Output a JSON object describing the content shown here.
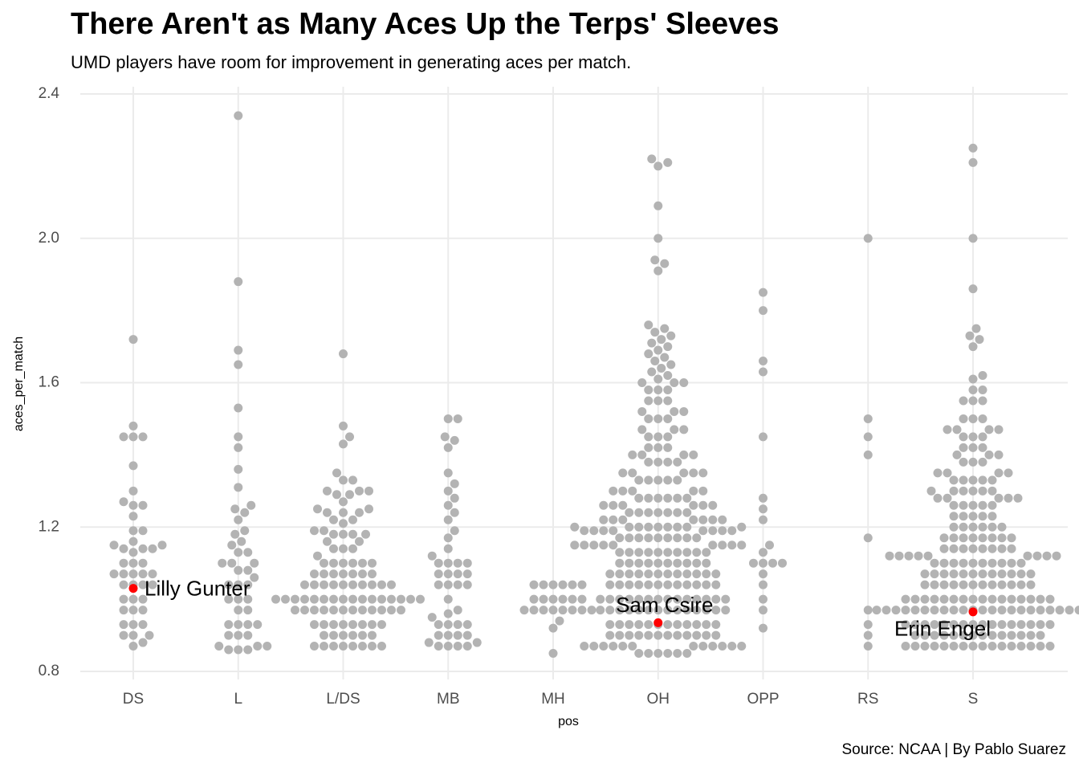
{
  "chart_data": {
    "type": "beeswarm",
    "title": "There Aren't as Many Aces Up the Terps' Sleeves",
    "subtitle": "UMD players have room for improvement in generating aces per match.",
    "caption": "Source: NCAA  |  By Pablo Suarez",
    "x_label": "pos",
    "y_label": "aces_per_match",
    "categories": [
      "DS",
      "L",
      "L/DS",
      "MB",
      "MH",
      "OH",
      "OPP",
      "RS",
      "S"
    ],
    "color": "#b3b3b3",
    "highlight_color": "#ff0000",
    "grid": true,
    "ylim": [
      0.8,
      2.4
    ],
    "yticks": [
      0.8,
      1.2,
      1.6,
      {
        "value": 2.0,
        "label": "2.0"
      },
      2.4
    ],
    "values": [
      [
        1.72,
        1.48,
        1.45,
        1.45,
        1.45,
        1.37,
        1.3,
        1.27,
        1.26,
        1.26,
        1.23,
        1.19,
        1.19,
        1.16,
        1.15,
        1.15,
        1.14,
        1.14,
        1.14,
        1.13,
        1.1,
        1.1,
        1.1,
        1.07,
        1.07,
        1.07,
        1.07,
        1.07,
        1.04,
        1.04,
        1.04,
        1.04,
        1.0,
        1.0,
        1.0,
        0.97,
        0.97,
        0.97,
        0.93,
        0.93,
        0.93,
        0.9,
        0.9,
        0.9,
        0.88,
        0.87
      ],
      [
        2.34,
        1.88,
        1.69,
        1.65,
        1.53,
        1.45,
        1.42,
        1.36,
        1.31,
        1.26,
        1.25,
        1.24,
        1.22,
        1.19,
        1.18,
        1.16,
        1.15,
        1.13,
        1.13,
        1.1,
        1.1,
        1.1,
        1.08,
        1.08,
        1.06,
        1.04,
        1.04,
        1.04,
        1.0,
        1.0,
        1.0,
        0.97,
        0.97,
        0.93,
        0.93,
        0.93,
        0.93,
        0.9,
        0.9,
        0.9,
        0.87,
        0.87,
        0.86,
        0.86,
        0.86,
        0.87
      ],
      [
        1.68,
        1.48,
        1.45,
        1.43,
        1.35,
        1.33,
        1.33,
        1.3,
        1.3,
        1.3,
        1.29,
        1.29,
        1.27,
        1.25,
        1.25,
        1.24,
        1.24,
        1.24,
        1.22,
        1.22,
        1.21,
        1.19,
        1.19,
        1.18,
        1.18,
        1.18,
        1.18,
        1.16,
        1.16,
        1.14,
        1.14,
        1.14,
        1.12,
        1.1,
        1.1,
        1.1,
        1.1,
        1.1,
        1.1,
        1.07,
        1.07,
        1.07,
        1.07,
        1.07,
        1.07,
        1.07,
        1.04,
        1.04,
        1.04,
        1.04,
        1.04,
        1.04,
        1.04,
        1.04,
        1.04,
        1.04,
        1.0,
        1.0,
        1.0,
        1.0,
        1.0,
        1.0,
        1.0,
        1.0,
        1.0,
        1.0,
        1.0,
        1.0,
        1.0,
        1.0,
        1.0,
        1.0,
        0.97,
        0.97,
        0.97,
        0.97,
        0.97,
        0.97,
        0.97,
        0.97,
        0.97,
        0.97,
        0.97,
        0.97,
        0.93,
        0.93,
        0.93,
        0.93,
        0.93,
        0.93,
        0.93,
        0.93,
        0.9,
        0.9,
        0.9,
        0.9,
        0.9,
        0.9,
        0.87,
        0.87,
        0.87,
        0.87,
        0.87,
        0.87,
        0.87,
        0.87
      ],
      [
        1.5,
        1.5,
        1.45,
        1.44,
        1.42,
        1.35,
        1.32,
        1.3,
        1.28,
        1.26,
        1.24,
        1.22,
        1.19,
        1.17,
        1.14,
        1.12,
        1.1,
        1.1,
        1.1,
        1.1,
        1.07,
        1.07,
        1.07,
        1.07,
        1.04,
        1.04,
        1.04,
        1.04,
        1.0,
        0.97,
        0.96,
        0.95,
        0.93,
        0.93,
        0.93,
        0.93,
        0.9,
        0.9,
        0.9,
        0.9,
        0.88,
        0.88,
        0.87,
        0.87,
        0.87,
        0.87
      ],
      [
        1.04,
        1.04,
        1.04,
        1.04,
        1.04,
        1.04,
        1.0,
        1.0,
        1.0,
        1.0,
        1.0,
        1.0,
        0.97,
        0.97,
        0.97,
        0.97,
        0.97,
        0.97,
        0.97,
        0.97,
        0.94,
        0.92,
        0.85
      ],
      [
        2.22,
        2.21,
        2.2,
        2.09,
        2.0,
        1.94,
        1.93,
        1.91,
        1.76,
        1.75,
        1.74,
        1.73,
        1.72,
        1.71,
        1.7,
        1.69,
        1.68,
        1.67,
        1.66,
        1.65,
        1.64,
        1.63,
        1.62,
        1.61,
        1.6,
        1.6,
        1.6,
        1.58,
        1.58,
        1.58,
        1.55,
        1.55,
        1.55,
        1.52,
        1.52,
        1.52,
        1.5,
        1.5,
        1.5,
        1.47,
        1.47,
        1.47,
        1.45,
        1.45,
        1.45,
        1.42,
        1.42,
        1.42,
        1.4,
        1.4,
        1.4,
        1.4,
        1.38,
        1.38,
        1.38,
        1.38,
        1.35,
        1.35,
        1.35,
        1.35,
        1.35,
        1.33,
        1.33,
        1.33,
        1.33,
        1.33,
        1.3,
        1.3,
        1.3,
        1.3,
        1.3,
        1.28,
        1.28,
        1.28,
        1.28,
        1.28,
        1.28,
        1.26,
        1.26,
        1.26,
        1.26,
        1.26,
        1.26,
        1.24,
        1.24,
        1.24,
        1.24,
        1.24,
        1.24,
        1.24,
        1.22,
        1.22,
        1.22,
        1.22,
        1.22,
        1.22,
        1.22,
        1.2,
        1.2,
        1.2,
        1.2,
        1.2,
        1.2,
        1.2,
        1.2,
        1.2,
        1.19,
        1.19,
        1.19,
        1.19,
        1.19,
        1.19,
        1.19,
        1.19,
        1.17,
        1.17,
        1.17,
        1.17,
        1.17,
        1.17,
        1.17,
        1.17,
        1.17,
        1.15,
        1.15,
        1.15,
        1.15,
        1.15,
        1.15,
        1.15,
        1.15,
        1.15,
        1.13,
        1.13,
        1.13,
        1.13,
        1.13,
        1.13,
        1.13,
        1.13,
        1.13,
        1.13,
        1.1,
        1.1,
        1.1,
        1.1,
        1.1,
        1.1,
        1.1,
        1.1,
        1.1,
        1.1,
        1.07,
        1.07,
        1.07,
        1.07,
        1.07,
        1.07,
        1.07,
        1.07,
        1.07,
        1.07,
        1.07,
        1.07,
        1.04,
        1.04,
        1.04,
        1.04,
        1.04,
        1.04,
        1.04,
        1.04,
        1.04,
        1.04,
        1.04,
        1.04,
        1.0,
        1.0,
        1.0,
        1.0,
        1.0,
        1.0,
        1.0,
        1.0,
        1.0,
        1.0,
        1.0,
        1.0,
        1.0,
        1.0,
        0.97,
        0.97,
        0.97,
        0.97,
        0.97,
        0.97,
        0.97,
        0.97,
        0.97,
        0.97,
        0.97,
        0.97,
        0.97,
        0.97,
        0.93,
        0.93,
        0.93,
        0.93,
        0.93,
        0.93,
        0.93,
        0.93,
        0.93,
        0.93,
        0.93,
        0.93,
        0.9,
        0.9,
        0.9,
        0.9,
        0.9,
        0.9,
        0.9,
        0.9,
        0.9,
        0.9,
        0.9,
        0.9,
        0.87,
        0.87,
        0.87,
        0.87,
        0.87,
        0.87,
        0.87,
        0.87,
        0.87,
        0.87,
        0.87,
        0.87,
        0.85,
        0.85,
        0.85,
        0.85,
        0.85,
        0.85
      ],
      [
        1.85,
        1.8,
        1.66,
        1.63,
        1.45,
        1.28,
        1.25,
        1.22,
        1.15,
        1.13,
        1.1,
        1.1,
        1.1,
        1.1,
        1.07,
        1.04,
        1.0,
        0.97,
        0.92
      ],
      [
        2.0,
        1.5,
        1.45,
        1.4,
        1.17,
        0.97,
        0.93,
        0.9,
        0.87
      ],
      [
        2.25,
        2.21,
        2.0,
        1.86,
        1.75,
        1.73,
        1.72,
        1.7,
        1.62,
        1.61,
        1.58,
        1.58,
        1.55,
        1.55,
        1.55,
        1.5,
        1.5,
        1.5,
        1.47,
        1.47,
        1.47,
        1.47,
        1.45,
        1.45,
        1.45,
        1.42,
        1.42,
        1.42,
        1.4,
        1.4,
        1.4,
        1.38,
        1.38,
        1.38,
        1.35,
        1.35,
        1.35,
        1.35,
        1.33,
        1.33,
        1.33,
        1.33,
        1.33,
        1.3,
        1.3,
        1.3,
        1.3,
        1.3,
        1.3,
        1.28,
        1.28,
        1.28,
        1.28,
        1.28,
        1.26,
        1.26,
        1.26,
        1.26,
        1.26,
        1.23,
        1.23,
        1.23,
        1.23,
        1.23,
        1.2,
        1.2,
        1.2,
        1.2,
        1.2,
        1.2,
        1.17,
        1.17,
        1.17,
        1.17,
        1.17,
        1.17,
        1.17,
        1.17,
        1.14,
        1.14,
        1.14,
        1.14,
        1.14,
        1.14,
        1.14,
        1.14,
        1.12,
        1.12,
        1.12,
        1.12,
        1.12,
        1.12,
        1.12,
        1.12,
        1.12,
        1.1,
        1.1,
        1.1,
        1.1,
        1.1,
        1.1,
        1.1,
        1.1,
        1.1,
        1.1,
        1.07,
        1.07,
        1.07,
        1.07,
        1.07,
        1.07,
        1.07,
        1.07,
        1.07,
        1.07,
        1.07,
        1.07,
        1.04,
        1.04,
        1.04,
        1.04,
        1.04,
        1.04,
        1.04,
        1.04,
        1.04,
        1.04,
        1.04,
        1.04,
        1.0,
        1.0,
        1.0,
        1.0,
        1.0,
        1.0,
        1.0,
        1.0,
        1.0,
        1.0,
        1.0,
        1.0,
        1.0,
        1.0,
        1.0,
        1.0,
        0.97,
        0.97,
        0.97,
        0.97,
        0.97,
        0.97,
        0.97,
        0.97,
        0.97,
        0.97,
        0.97,
        0.97,
        0.97,
        0.97,
        0.97,
        0.97,
        0.97,
        0.97,
        0.97,
        0.97,
        0.97,
        0.97,
        0.93,
        0.93,
        0.93,
        0.93,
        0.93,
        0.93,
        0.93,
        0.93,
        0.93,
        0.93,
        0.93,
        0.93,
        0.93,
        0.93,
        0.93,
        0.93,
        0.9,
        0.9,
        0.9,
        0.9,
        0.9,
        0.9,
        0.9,
        0.9,
        0.9,
        0.9,
        0.9,
        0.9,
        0.9,
        0.9,
        0.87,
        0.87,
        0.87,
        0.87,
        0.87,
        0.87,
        0.87,
        0.87,
        0.87,
        0.87,
        0.87,
        0.87,
        0.87,
        0.87,
        0.87,
        0.87
      ]
    ],
    "highlights": [
      {
        "name": "Lilly Gunter",
        "category": "DS",
        "value": 1.03
      },
      {
        "name": "Sam Csire",
        "category": "OH",
        "value": 0.935
      },
      {
        "name": "Erin Engel",
        "category": "S",
        "value": 0.965
      }
    ]
  }
}
